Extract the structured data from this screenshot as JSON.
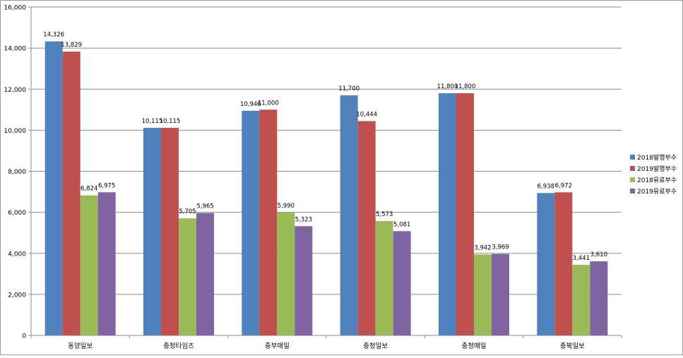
{
  "chart_data": {
    "type": "bar",
    "title": "",
    "xlabel": "",
    "ylabel": "",
    "ylim": [
      0,
      16000
    ],
    "yticks": [
      "0",
      "2,000",
      "4,000",
      "6,000",
      "8,000",
      "10,000",
      "12,000",
      "14,000",
      "16,000"
    ],
    "grid": true,
    "legend_position": "right",
    "categories": [
      "동양일보",
      "충청타임즈",
      "중부매일",
      "충청일보",
      "충청매일",
      "충북일보"
    ],
    "series": [
      {
        "name": "2018발행부수",
        "color": "#4f81bd",
        "values": [
          14326,
          10115,
          10946,
          11700,
          11800,
          6938
        ],
        "labels": [
          "14,326",
          "10,115",
          "10,946",
          "11,700",
          "11,800",
          "6,938"
        ]
      },
      {
        "name": "2019발행부수",
        "color": "#c0504d",
        "values": [
          13829,
          10115,
          11000,
          10444,
          11800,
          6972
        ],
        "labels": [
          "13,829",
          "10,115",
          "11,000",
          "10,444",
          "11,800",
          "6,972"
        ]
      },
      {
        "name": "2018유료부수",
        "color": "#9bbb59",
        "values": [
          6824,
          5705,
          5990,
          5573,
          3942,
          3441
        ],
        "labels": [
          "6,824",
          "5,705",
          "5,990",
          "5,573",
          "3,942",
          "3,441"
        ]
      },
      {
        "name": "2019유료부수",
        "color": "#8064a2",
        "values": [
          6975,
          5965,
          5323,
          5081,
          3969,
          3610
        ],
        "labels": [
          "6,975",
          "5,965",
          "5,323",
          "5,081",
          "3,969",
          "3,610"
        ]
      }
    ]
  }
}
